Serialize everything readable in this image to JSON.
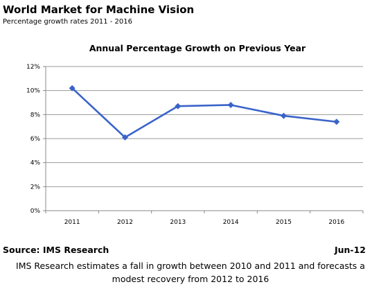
{
  "header": {
    "title": "World Market for Machine Vision",
    "subtitle": "Percentage growth rates 2011 - 2016"
  },
  "chart_data": {
    "type": "line",
    "title": "Annual Percentage Growth on Previous Year",
    "xlabel": "",
    "ylabel": "",
    "categories": [
      "2011",
      "2012",
      "2013",
      "2014",
      "2015",
      "2016"
    ],
    "series": [
      {
        "values": [
          10.2,
          6.1,
          8.7,
          8.8,
          7.9,
          7.4
        ],
        "color": "#3a63c9"
      }
    ],
    "y_ticks": [
      "0%",
      "2%",
      "4%",
      "6%",
      "8%",
      "10%",
      "12%"
    ],
    "ylim": [
      0,
      12
    ],
    "grid": true,
    "grid_color": "#9a9a9a",
    "legend": "none"
  },
  "footer": {
    "source": "Source: IMS Research",
    "date": "Jun-12",
    "caption_line1": "IMS Research estimates a fall in growth between 2010 and 2011  and forecasts a",
    "caption_line2": "modest recovery from 2012 to 2016"
  }
}
